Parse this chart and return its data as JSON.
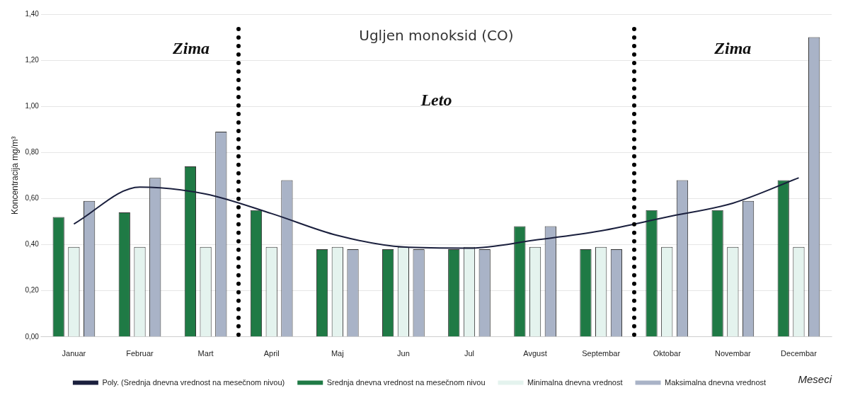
{
  "chart_data": {
    "type": "bar",
    "title": "Ugljen monoksid (CO)",
    "xlabel": "Meseci",
    "ylabel": "Koncentracija mg/m³",
    "categories": [
      "Januar",
      "Februar",
      "Mart",
      "April",
      "Maj",
      "Jun",
      "Jul",
      "Avgust",
      "Septembar",
      "Oktobar",
      "Novembar",
      "Decembar"
    ],
    "series": [
      {
        "name": "Srednja dnevna vrednost na mesečnom nivou",
        "color": "#1f7a45",
        "values": [
          0.52,
          0.54,
          0.74,
          0.55,
          0.38,
          0.38,
          0.38,
          0.48,
          0.38,
          0.55,
          0.55,
          0.68
        ]
      },
      {
        "name": "Minimalna dnevna vrednost",
        "color": "#e4f3ee",
        "values": [
          0.39,
          0.39,
          0.39,
          0.39,
          0.39,
          0.39,
          0.39,
          0.39,
          0.39,
          0.39,
          0.39,
          0.39
        ]
      },
      {
        "name": "Maksimalna dnevna vrednost",
        "color": "#a9b3c7",
        "values": [
          0.59,
          0.69,
          0.89,
          0.68,
          0.38,
          0.38,
          0.38,
          0.48,
          0.38,
          0.68,
          0.59,
          1.3
        ]
      },
      {
        "name": "Poly. (Srednja dnevna vrednost na mesečnom nivou)",
        "type": "line",
        "color": "#1a1f3d",
        "marker": "none",
        "line_style": "solid",
        "x": [
          "Januar",
          "Februar",
          "Mart",
          "April",
          "Maj",
          "Jun",
          "Jul",
          "Avgust",
          "Septembar",
          "Oktobar",
          "Novembar",
          "Decembar"
        ],
        "values": [
          0.49,
          0.65,
          0.62,
          0.535,
          0.44,
          0.39,
          0.385,
          0.42,
          0.46,
          0.52,
          0.58,
          0.69
        ]
      }
    ],
    "ylim": [
      0,
      1.4
    ],
    "yticks": [
      {
        "value": 0,
        "label": "0,00"
      },
      {
        "value": 0.2,
        "label": "0,20"
      },
      {
        "value": 0.4,
        "label": "0,40"
      },
      {
        "value": 0.6,
        "label": "0,60"
      },
      {
        "value": 0.8,
        "label": "0,80"
      },
      {
        "value": 1.0,
        "label": "1,00"
      },
      {
        "value": 1.2,
        "label": "1,20"
      },
      {
        "value": 1.4,
        "label": "1,40"
      }
    ],
    "grid": "y",
    "legend": "bottom",
    "annotations": [
      "Zima",
      "Leto",
      "Zima"
    ]
  }
}
